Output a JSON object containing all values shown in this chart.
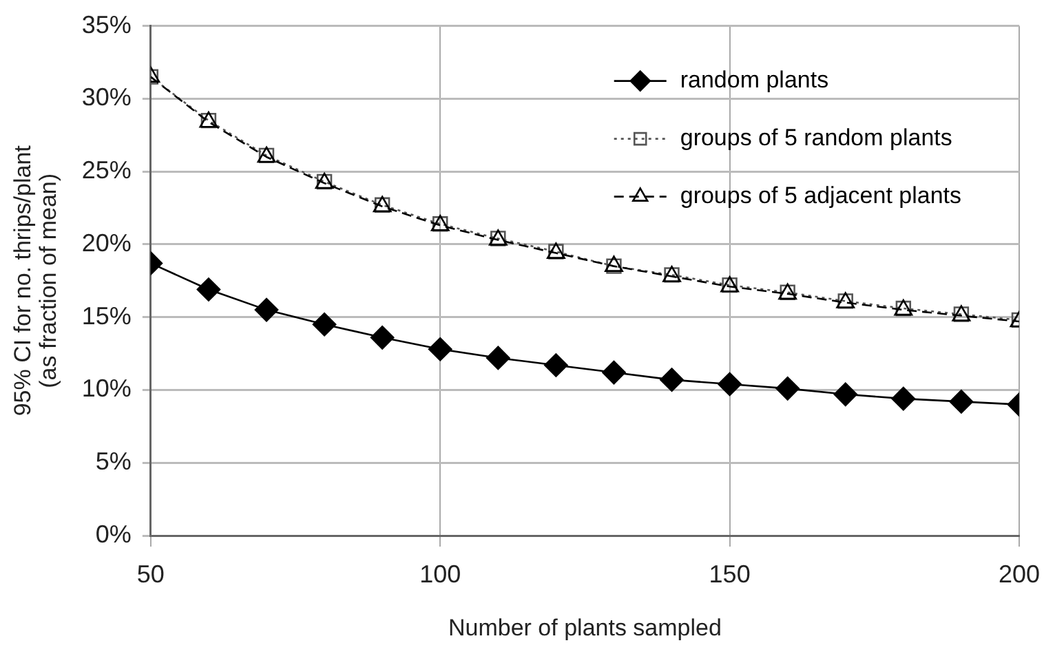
{
  "chart_data": {
    "type": "line",
    "xlabel": "Number of plants sampled",
    "ylabel": "95% CI for no. thrips/plant\n(as fraction of mean)",
    "x": [
      50,
      60,
      70,
      80,
      90,
      100,
      110,
      120,
      130,
      140,
      150,
      160,
      170,
      180,
      190,
      200
    ],
    "series": [
      {
        "name": "random plants",
        "color": "#000000",
        "marker": "diamond",
        "line_style": "solid",
        "values": [
          18.7,
          16.9,
          15.5,
          14.5,
          13.6,
          12.8,
          12.2,
          11.7,
          11.2,
          10.7,
          10.4,
          10.1,
          9.7,
          9.4,
          9.2,
          9.0
        ]
      },
      {
        "name": "groups of 5 random plants",
        "color": "#555555",
        "marker": "square",
        "line_style": "dotted",
        "values": [
          31.5,
          28.5,
          26.1,
          24.3,
          22.7,
          21.4,
          20.4,
          19.5,
          18.5,
          17.9,
          17.2,
          16.7,
          16.1,
          15.6,
          15.2,
          14.8
        ]
      },
      {
        "name": "groups of 5 adjacent plants",
        "color": "#000000",
        "marker": "triangle",
        "line_style": "dashed",
        "values": [
          31.5,
          28.4,
          26.0,
          24.2,
          22.6,
          21.3,
          20.3,
          19.4,
          18.5,
          17.8,
          17.1,
          16.6,
          16.0,
          15.5,
          15.1,
          14.7
        ]
      }
    ],
    "xlim": [
      50,
      200
    ],
    "xticks": [
      50,
      100,
      150,
      200
    ],
    "ylim": [
      0,
      35
    ],
    "yticks": [
      {
        "value": 0,
        "label": "0%"
      },
      {
        "value": 5,
        "label": "5%"
      },
      {
        "value": 10,
        "label": "10%"
      },
      {
        "value": 15,
        "label": "15%"
      },
      {
        "value": 20,
        "label": "20%"
      },
      {
        "value": 25,
        "label": "25%"
      },
      {
        "value": 30,
        "label": "30%"
      },
      {
        "value": 35,
        "label": "35%"
      }
    ],
    "grid": true,
    "legend": "top right"
  }
}
